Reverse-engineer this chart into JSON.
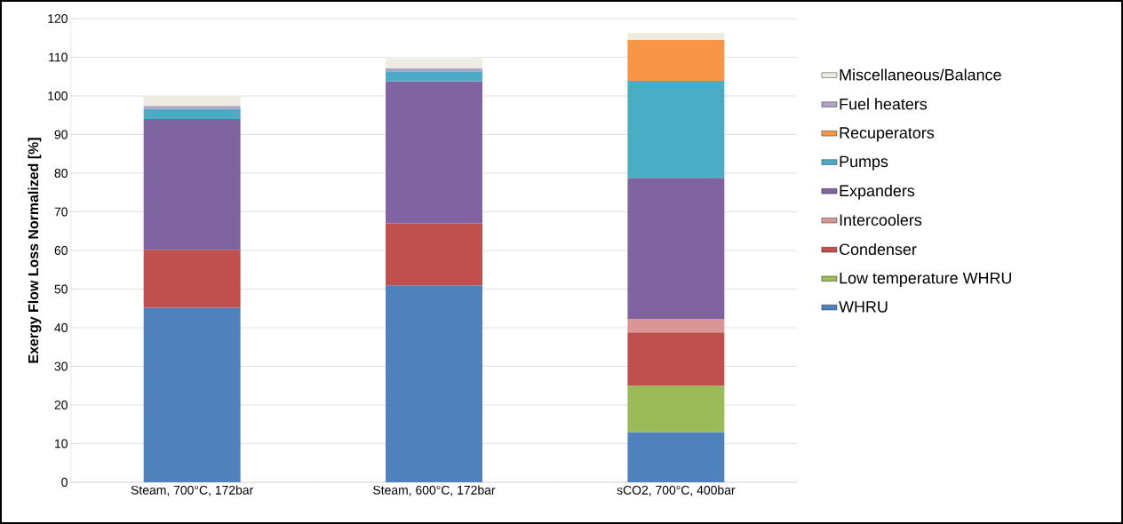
{
  "chart_data": {
    "type": "bar",
    "stacked": true,
    "ylabel": "Exergy Flow Loss Normalized [%]",
    "categories": [
      "Steam, 700°C, 172bar",
      "Steam, 600°C, 172bar",
      "sCO2, 700°C, 400bar"
    ],
    "ylim": [
      0,
      120
    ],
    "yticks": [
      0,
      10,
      20,
      30,
      40,
      50,
      60,
      70,
      80,
      90,
      100,
      110,
      120
    ],
    "grid": "y",
    "legend": "right",
    "series": [
      {
        "name": "WHRU",
        "color": "#4f81bd",
        "values": [
          45.2,
          51,
          13
        ]
      },
      {
        "name": "Low temperature WHRU",
        "color": "#9bbb59",
        "values": [
          null,
          null,
          12
        ]
      },
      {
        "name": "Condenser",
        "color": "#c0504d",
        "values": [
          15,
          16,
          13.8
        ]
      },
      {
        "name": "Intercoolers",
        "color": "#d99694",
        "values": [
          null,
          null,
          3.5
        ]
      },
      {
        "name": "Expanders",
        "color": "#8064a2",
        "values": [
          33.8,
          36.8,
          36.5
        ]
      },
      {
        "name": "Pumps",
        "color": "#4bacc6",
        "values": [
          2.6,
          2.6,
          25.1
        ]
      },
      {
        "name": "Recuperators",
        "color": "#f79646",
        "values": [
          null,
          null,
          10.6
        ]
      },
      {
        "name": "Fuel heaters",
        "color": "#b3a2c7",
        "values": [
          0.8,
          0.8,
          null
        ]
      },
      {
        "name": "Miscellaneous/Balance",
        "color": "#eeece1",
        "values": [
          2.6,
          2.5,
          1.8
        ]
      }
    ]
  }
}
